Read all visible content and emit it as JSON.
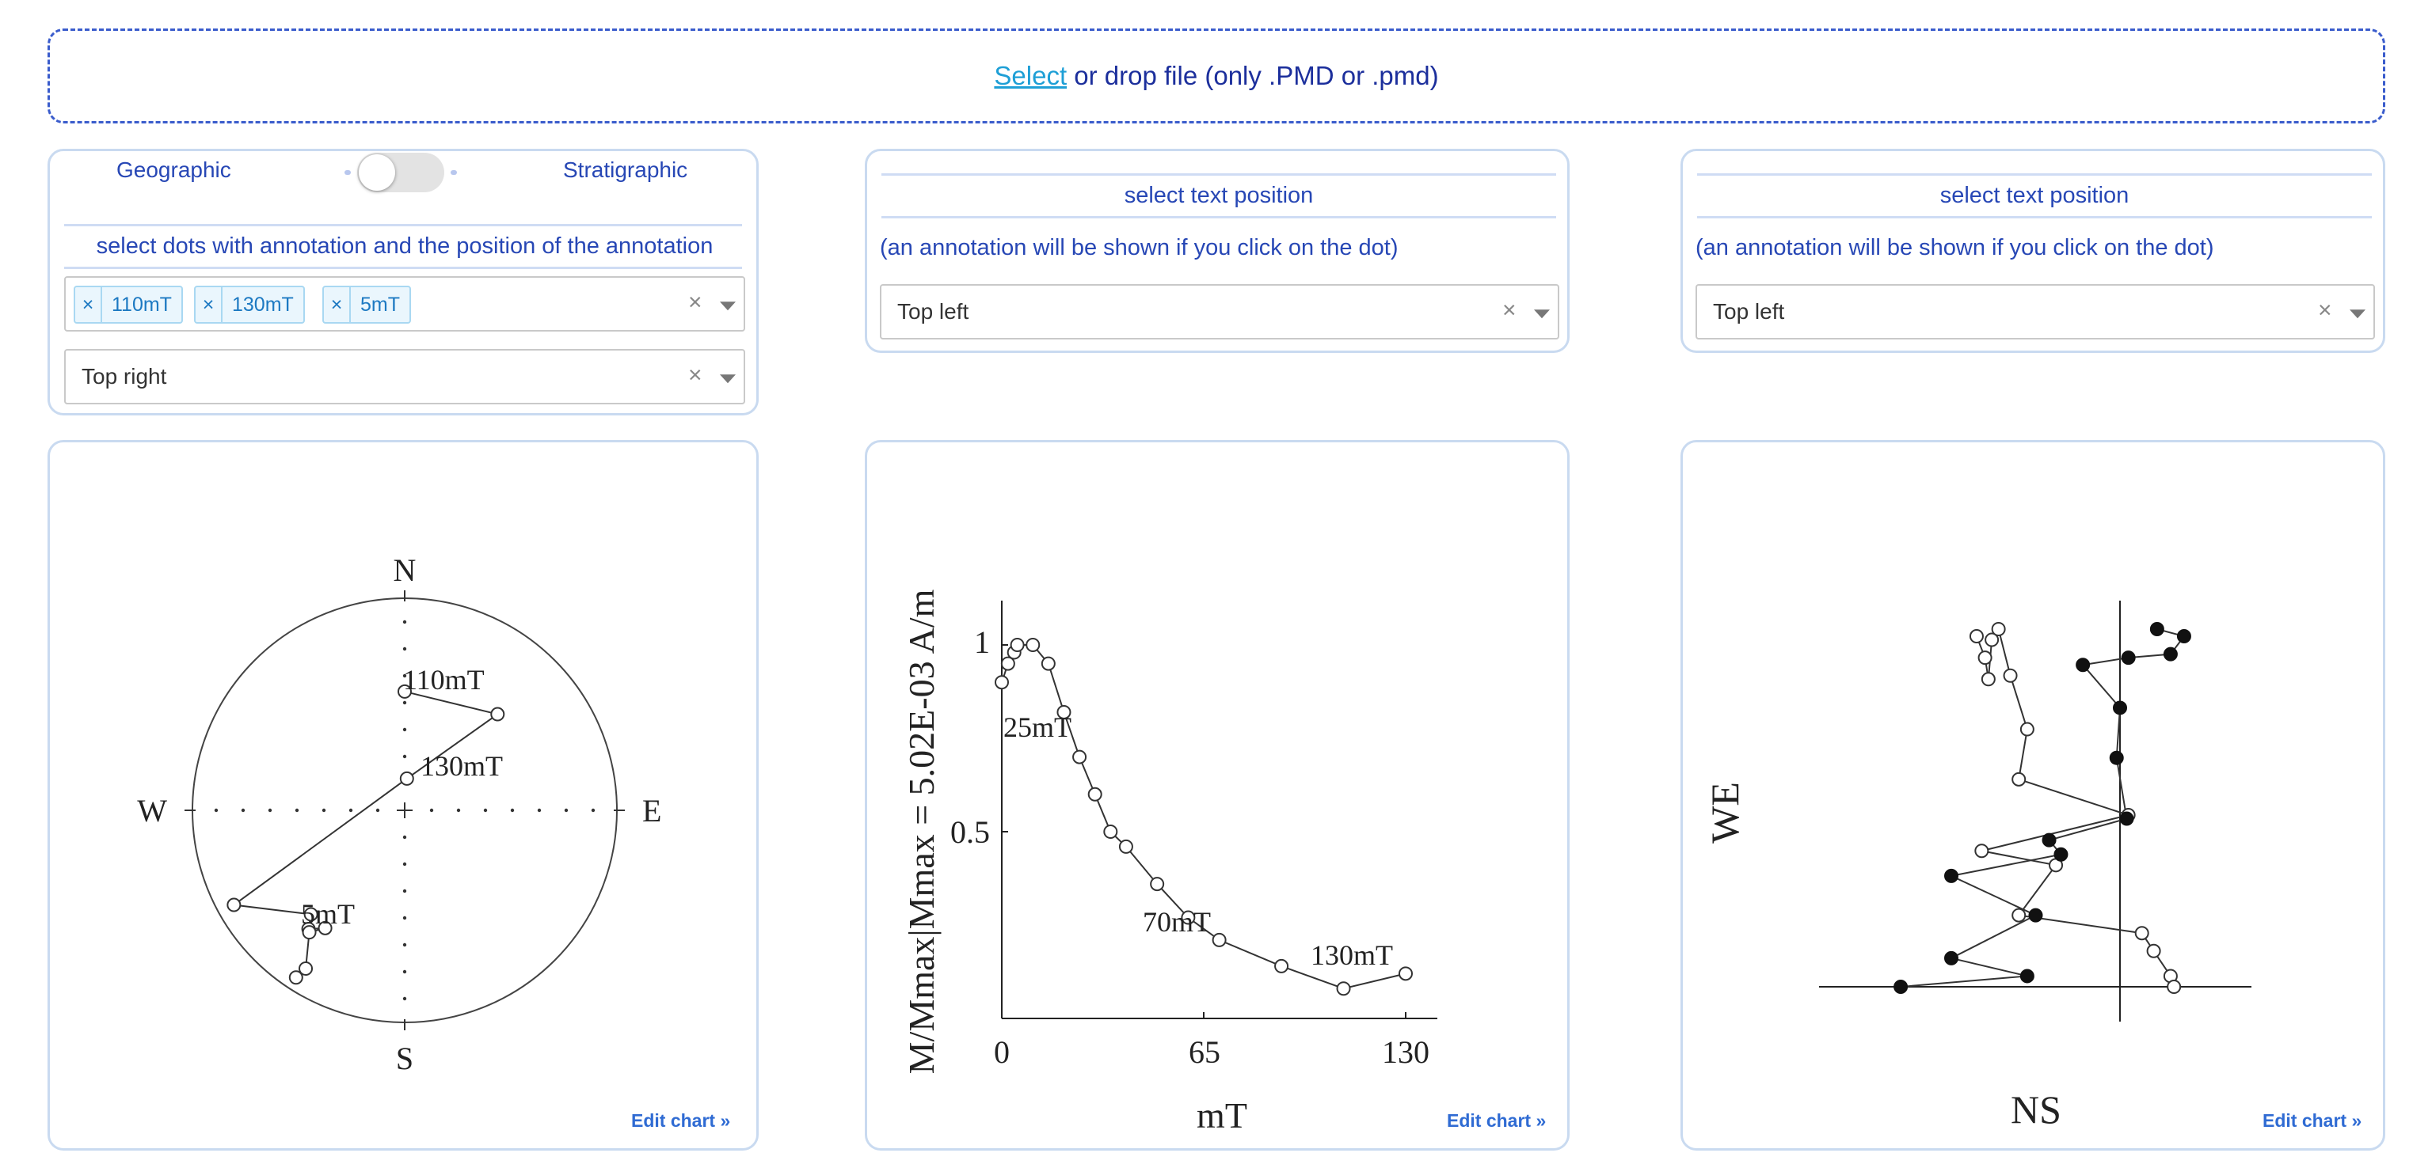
{
  "upload": {
    "link_text": "Select",
    "rest_text": " or drop file (only .PMD or .pmd)"
  },
  "panel_left": {
    "geographic_label": "Geographic",
    "stratigraphic_label": "Stratigraphic",
    "instruction": "select dots with annotation and the position of the annotation",
    "chips": [
      "110mT",
      "130mT",
      "5mT"
    ],
    "position_value": "Top right",
    "clear_symbol": "×"
  },
  "panel_mid": {
    "title": "select text position",
    "note": "(an annotation will be shown if you click on the dot)",
    "position_value": "Top left"
  },
  "panel_right": {
    "title": "select text position",
    "note": "(an annotation will be shown if you click on the dot)",
    "position_value": "Top left"
  },
  "edit_chart_label": "Edit chart »",
  "chart_data": [
    {
      "type": "scatter",
      "kind": "stereonet",
      "directions": [
        "N",
        "E",
        "S",
        "W"
      ],
      "labels": [
        "110mT",
        "130mT",
        "5mT"
      ],
      "points_lower_open": [
        {
          "dec": 0,
          "inc_r": 0.56
        },
        {
          "dec": 44,
          "inc_r": 0.63
        },
        {
          "dec": 4,
          "inc_r": 0.15
        },
        {
          "dec": 241,
          "inc_r": 0.92
        },
        {
          "dec": 222,
          "inc_r": 0.66
        },
        {
          "dec": 219,
          "inc_r": 0.72
        },
        {
          "dec": 214,
          "inc_r": 0.67
        },
        {
          "dec": 218,
          "inc_r": 0.73
        },
        {
          "dec": 212,
          "inc_r": 0.88
        },
        {
          "dec": 213,
          "inc_r": 0.94
        }
      ]
    },
    {
      "type": "line",
      "kind": "demagnetization",
      "ylabel": "M/Mmax|Mmax = 5.02E-03 A/m",
      "xlabel": "mT",
      "xticks": [
        0,
        65,
        130
      ],
      "yticks": [
        0.5,
        1
      ],
      "labels": [
        "25mT",
        "70mT",
        "130mT"
      ],
      "x": [
        0,
        2,
        4,
        5,
        10,
        15,
        20,
        25,
        30,
        35,
        40,
        50,
        60,
        70,
        90,
        110,
        130
      ],
      "y": [
        0.9,
        0.95,
        0.98,
        1.0,
        1.0,
        0.95,
        0.82,
        0.7,
        0.6,
        0.5,
        0.46,
        0.36,
        0.27,
        0.21,
        0.14,
        0.08,
        0.12
      ]
    },
    {
      "type": "scatter",
      "kind": "zijderveld",
      "xlabel": "NS",
      "ylabel": "WE",
      "open_points": [
        [
          -0.85,
          0.98
        ],
        [
          -0.8,
          0.92
        ],
        [
          -0.78,
          0.86
        ],
        [
          -0.76,
          0.97
        ],
        [
          -0.72,
          1.0
        ],
        [
          -0.65,
          0.87
        ],
        [
          -0.55,
          0.72
        ],
        [
          -0.6,
          0.58
        ],
        [
          0.05,
          0.48
        ],
        [
          -0.82,
          0.38
        ],
        [
          -0.38,
          0.34
        ],
        [
          -0.6,
          0.2
        ],
        [
          0.13,
          0.15
        ],
        [
          0.2,
          0.1
        ],
        [
          0.3,
          0.03
        ],
        [
          0.32,
          0.0
        ]
      ],
      "filled_points": [
        [
          0.22,
          1.0
        ],
        [
          0.38,
          0.98
        ],
        [
          0.3,
          0.93
        ],
        [
          0.05,
          0.92
        ],
        [
          -0.22,
          0.9
        ],
        [
          0.0,
          0.78
        ],
        [
          -0.02,
          0.64
        ],
        [
          0.04,
          0.47
        ],
        [
          -0.42,
          0.41
        ],
        [
          -0.35,
          0.37
        ],
        [
          -1.0,
          0.31
        ],
        [
          -0.5,
          0.2
        ],
        [
          -1.0,
          0.08
        ],
        [
          -0.55,
          0.03
        ],
        [
          -1.3,
          0.0
        ]
      ]
    }
  ]
}
